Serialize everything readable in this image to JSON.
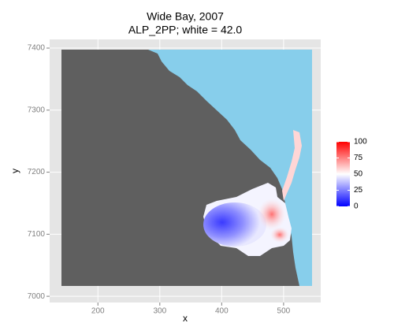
{
  "chart_data": {
    "type": "raster",
    "title": "Wide Bay, 2007",
    "subtitle": "ALP_2PP; white = 42.0",
    "x_label": "x",
    "y_label": "y",
    "xlim": [
      122,
      560
    ],
    "xticks": [
      200,
      300,
      400,
      500
    ],
    "ylim": [
      6990,
      7414
    ],
    "yticks": [
      7000,
      7100,
      7200,
      7300,
      7400
    ],
    "grid": true,
    "legend": {
      "limits": [
        0,
        100
      ],
      "ticks": [
        0,
        25,
        50,
        75,
        100
      ],
      "low": "#0000ff",
      "mid": "#ffffff",
      "high": "#ff0000"
    }
  }
}
